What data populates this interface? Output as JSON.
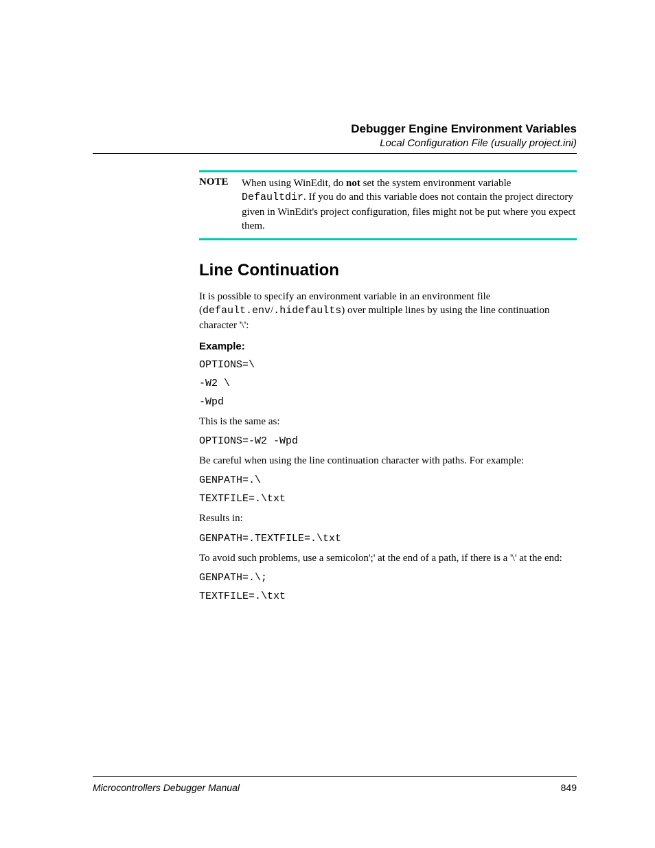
{
  "colors": {
    "note_border": "#00c8b4",
    "text": "#000000",
    "background": "#ffffff",
    "rule": "#000000"
  },
  "typography": {
    "body_family": "Times New Roman",
    "heading_family": "Arial",
    "mono_family": "Courier New",
    "h2_fontsize": 24,
    "body_fontsize": 15,
    "header_title_fontsize": 17,
    "header_sub_fontsize": 15
  },
  "header": {
    "title": "Debugger Engine Environment Variables",
    "subtitle": "Local Configuration File (usually project.ini)"
  },
  "note": {
    "label": "NOTE",
    "text_before_bold": "When using WinEdit, do ",
    "bold_word": "not",
    "text_after_bold_1": " set the system environment variable ",
    "code_word": "Defaultdir",
    "text_after_code": ". If you do and this variable does not contain the project directory given in WinEdit's project configuration, files might not be put where you expect them."
  },
  "section": {
    "heading": "Line Continuation",
    "intro_before_code1": "It is possible to specify an environment variable in an environment file (",
    "intro_code1": "default.env",
    "intro_slash": "/",
    "intro_code2": ".hidefaults",
    "intro_after_code": ") over multiple lines by using the line continuation character '\\':",
    "example_label": "Example:"
  },
  "code": {
    "line1": "OPTIONS=\\",
    "line2": "-W2 \\",
    "line3": "-Wpd",
    "same_as_text": "This is the same as:",
    "line4": "OPTIONS=-W2 -Wpd",
    "careful_text": "Be careful when using the line continuation character with paths. For example:",
    "line5": "GENPATH=.\\",
    "line6": "TEXTFILE=.\\txt",
    "results_text": "Results in:",
    "line7": "GENPATH=.TEXTFILE=.\\txt",
    "avoid_text": "To avoid such problems, use a semicolon';' at the end of a path, if there is a '\\' at the end:",
    "line8": "GENPATH=.\\;",
    "line9": "TEXTFILE=.\\txt"
  },
  "footer": {
    "left": "Microcontrollers Debugger Manual",
    "page": "849"
  }
}
